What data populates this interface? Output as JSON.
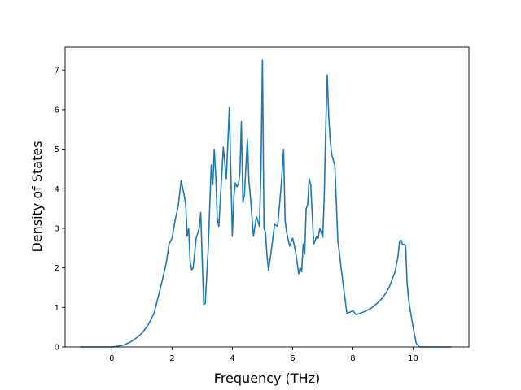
{
  "chart_data": {
    "type": "line",
    "title": "",
    "xlabel": "Frequency (THz)",
    "ylabel": "Density of States",
    "xlim": [
      -1.55,
      11.85
    ],
    "ylim": [
      0,
      7.58
    ],
    "xticks": [
      0,
      2,
      4,
      6,
      8,
      10
    ],
    "yticks": [
      0,
      1,
      2,
      3,
      4,
      5,
      6,
      7
    ],
    "grid": false,
    "legend": "none",
    "series": [
      {
        "color": "#1f77b4",
        "x": [
          -1.05,
          0.0,
          0.2,
          0.4,
          0.6,
          0.8,
          1.0,
          1.2,
          1.4,
          1.6,
          1.8,
          1.9,
          2.0,
          2.1,
          2.2,
          2.3,
          2.4,
          2.45,
          2.5,
          2.55,
          2.6,
          2.65,
          2.7,
          2.8,
          2.9,
          2.95,
          3.0,
          3.05,
          3.1,
          3.2,
          3.3,
          3.35,
          3.4,
          3.45,
          3.5,
          3.55,
          3.6,
          3.7,
          3.8,
          3.9,
          4.0,
          4.05,
          4.1,
          4.15,
          4.2,
          4.25,
          4.3,
          4.35,
          4.4,
          4.5,
          4.55,
          4.6,
          4.7,
          4.8,
          4.9,
          4.95,
          5.0,
          5.05,
          5.1,
          5.15,
          5.2,
          5.3,
          5.4,
          5.5,
          5.6,
          5.65,
          5.7,
          5.75,
          5.8,
          5.9,
          6.0,
          6.1,
          6.2,
          6.25,
          6.3,
          6.35,
          6.4,
          6.45,
          6.5,
          6.55,
          6.6,
          6.7,
          6.8,
          6.85,
          6.9,
          7.0,
          7.05,
          7.1,
          7.15,
          7.2,
          7.25,
          7.3,
          7.4,
          7.5,
          7.55,
          7.6,
          7.7,
          7.8,
          7.9,
          8.0,
          8.1,
          8.2,
          8.4,
          8.6,
          8.8,
          9.0,
          9.2,
          9.4,
          9.5,
          9.55,
          9.6,
          9.65,
          9.7,
          9.75,
          9.8,
          9.85,
          9.9,
          10.0,
          10.1,
          10.2,
          10.3,
          10.6,
          11.25
        ],
        "y": [
          0.0,
          0.0,
          0.02,
          0.05,
          0.12,
          0.22,
          0.35,
          0.55,
          0.85,
          1.45,
          2.1,
          2.6,
          2.75,
          3.2,
          3.55,
          4.2,
          3.85,
          3.6,
          2.8,
          3.0,
          2.15,
          1.95,
          2.0,
          2.75,
          3.0,
          3.4,
          2.2,
          1.08,
          1.1,
          2.5,
          4.6,
          4.1,
          5.0,
          4.3,
          3.25,
          3.05,
          3.7,
          5.05,
          4.25,
          6.05,
          2.8,
          3.8,
          4.15,
          4.05,
          4.1,
          4.4,
          5.7,
          3.65,
          3.85,
          5.25,
          4.2,
          3.8,
          2.8,
          3.3,
          3.05,
          4.5,
          7.25,
          3.0,
          2.9,
          2.3,
          1.93,
          2.5,
          3.1,
          3.05,
          3.9,
          4.4,
          5.0,
          3.2,
          2.9,
          2.55,
          2.75,
          2.4,
          1.85,
          2.0,
          1.9,
          2.6,
          2.35,
          3.5,
          3.6,
          4.25,
          4.1,
          2.6,
          2.8,
          2.75,
          3.0,
          2.78,
          3.8,
          5.6,
          6.88,
          5.8,
          5.2,
          4.85,
          4.6,
          2.7,
          2.4,
          2.05,
          1.45,
          0.85,
          0.88,
          0.92,
          0.82,
          0.84,
          0.9,
          0.98,
          1.1,
          1.25,
          1.5,
          1.9,
          2.3,
          2.68,
          2.7,
          2.58,
          2.6,
          2.55,
          1.6,
          1.2,
          0.95,
          0.5,
          0.1,
          0.0,
          0.0,
          0.0,
          0.0
        ]
      }
    ]
  }
}
